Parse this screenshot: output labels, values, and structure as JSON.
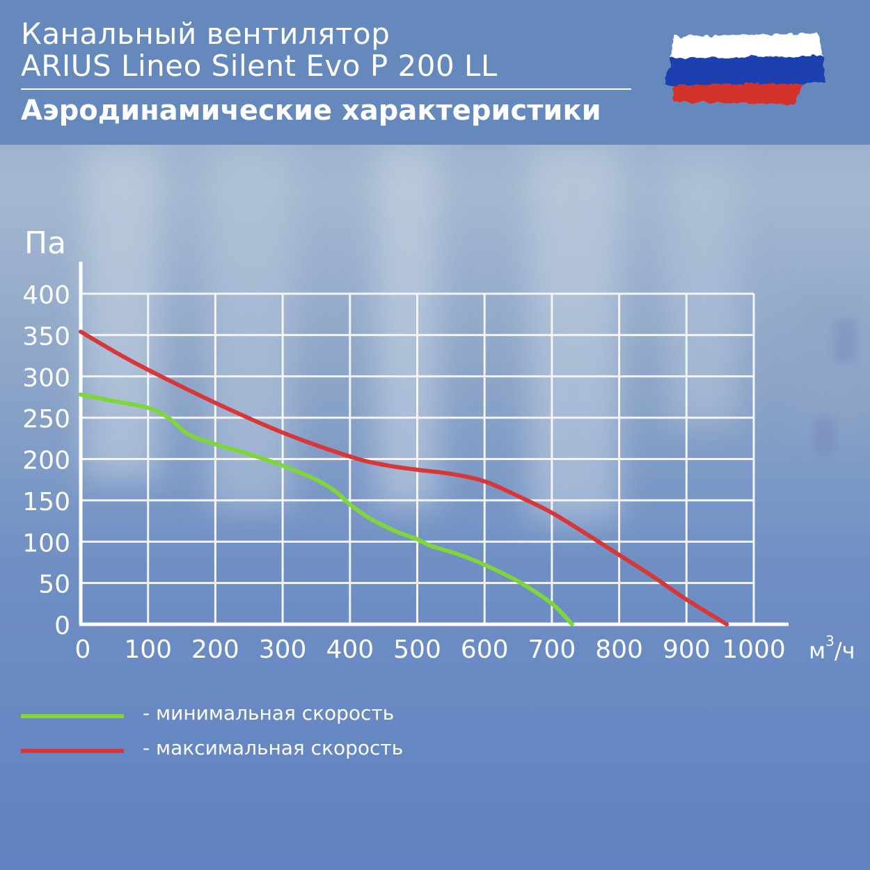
{
  "header": {
    "title_line1": "Канальный вентилятор",
    "title_line2": "ARIUS Lineo Silent Evo P 200 LL",
    "subtitle": "Аэродинамические характеристики"
  },
  "flag": {
    "colors": [
      "#ffffff",
      "#1c3fb0",
      "#d2312b"
    ]
  },
  "chart_data": {
    "type": "line",
    "ylabel": "Па",
    "xlabel_base": "м",
    "xlabel_sup": "3",
    "xlabel_tail": "/ч",
    "xlim": [
      0,
      1000
    ],
    "ylim": [
      0,
      400
    ],
    "x_ticks": [
      0,
      100,
      200,
      300,
      400,
      500,
      600,
      700,
      800,
      900,
      1000
    ],
    "y_ticks": [
      0,
      50,
      100,
      150,
      200,
      250,
      300,
      350,
      400
    ],
    "grid": true,
    "series": [
      {
        "name": "- минимальная скорость",
        "color": "#7ed63a",
        "points": [
          [
            0,
            278
          ],
          [
            50,
            270
          ],
          [
            100,
            262
          ],
          [
            130,
            250
          ],
          [
            160,
            230
          ],
          [
            200,
            218
          ],
          [
            250,
            206
          ],
          [
            300,
            192
          ],
          [
            350,
            175
          ],
          [
            380,
            160
          ],
          [
            400,
            145
          ],
          [
            430,
            128
          ],
          [
            470,
            112
          ],
          [
            500,
            103
          ],
          [
            520,
            95
          ],
          [
            560,
            85
          ],
          [
            600,
            72
          ],
          [
            650,
            52
          ],
          [
            700,
            25
          ],
          [
            730,
            0
          ]
        ]
      },
      {
        "name": "- максимальная скорость",
        "color": "#d6383a",
        "points": [
          [
            0,
            354
          ],
          [
            50,
            330
          ],
          [
            100,
            308
          ],
          [
            200,
            268
          ],
          [
            300,
            232
          ],
          [
            400,
            203
          ],
          [
            450,
            193
          ],
          [
            500,
            187
          ],
          [
            550,
            182
          ],
          [
            600,
            173
          ],
          [
            650,
            155
          ],
          [
            700,
            135
          ],
          [
            750,
            110
          ],
          [
            800,
            84
          ],
          [
            850,
            58
          ],
          [
            900,
            30
          ],
          [
            960,
            0
          ]
        ]
      }
    ],
    "legend": "bottom-left"
  }
}
